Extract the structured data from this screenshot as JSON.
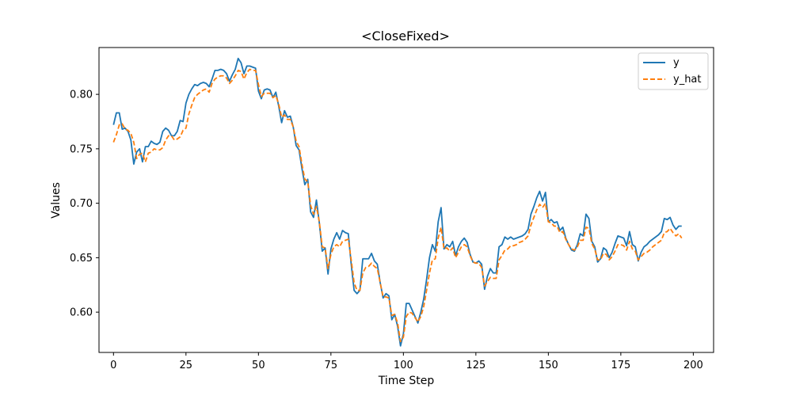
{
  "chart_data": {
    "type": "line",
    "title": "<CloseFixed>",
    "xlabel": "Time Step",
    "ylabel": "Values",
    "xlim": [
      -5,
      207
    ],
    "ylim": [
      0.563,
      0.843
    ],
    "xticks": [
      0,
      25,
      50,
      75,
      100,
      125,
      150,
      175,
      200
    ],
    "yticks": [
      0.6,
      0.65,
      0.7,
      0.75,
      0.8
    ],
    "ytick_labels": [
      "0.60",
      "0.65",
      "0.70",
      "0.75",
      "0.80"
    ],
    "grid": false,
    "legend_position": "top-right",
    "series": [
      {
        "name": "y",
        "color": "#1f77b4",
        "dash": "solid",
        "values": [
          0.772,
          0.783,
          0.783,
          0.768,
          0.769,
          0.766,
          0.758,
          0.736,
          0.747,
          0.75,
          0.738,
          0.752,
          0.752,
          0.757,
          0.755,
          0.754,
          0.756,
          0.766,
          0.769,
          0.767,
          0.762,
          0.762,
          0.766,
          0.776,
          0.775,
          0.792,
          0.8,
          0.805,
          0.809,
          0.808,
          0.81,
          0.811,
          0.81,
          0.807,
          0.814,
          0.822,
          0.822,
          0.823,
          0.822,
          0.819,
          0.812,
          0.818,
          0.823,
          0.833,
          0.829,
          0.819,
          0.826,
          0.826,
          0.825,
          0.824,
          0.803,
          0.796,
          0.804,
          0.805,
          0.804,
          0.797,
          0.802,
          0.789,
          0.774,
          0.785,
          0.779,
          0.78,
          0.77,
          0.753,
          0.749,
          0.732,
          0.717,
          0.722,
          0.692,
          0.687,
          0.703,
          0.682,
          0.656,
          0.659,
          0.635,
          0.658,
          0.667,
          0.673,
          0.667,
          0.675,
          0.673,
          0.672,
          0.644,
          0.62,
          0.617,
          0.62,
          0.649,
          0.649,
          0.649,
          0.654,
          0.647,
          0.644,
          0.627,
          0.613,
          0.617,
          0.615,
          0.593,
          0.598,
          0.587,
          0.569,
          0.58,
          0.608,
          0.608,
          0.602,
          0.596,
          0.59,
          0.6,
          0.612,
          0.63,
          0.65,
          0.662,
          0.656,
          0.683,
          0.696,
          0.658,
          0.662,
          0.66,
          0.665,
          0.652,
          0.66,
          0.665,
          0.668,
          0.664,
          0.653,
          0.646,
          0.645,
          0.647,
          0.644,
          0.621,
          0.633,
          0.64,
          0.636,
          0.636,
          0.66,
          0.662,
          0.669,
          0.667,
          0.669,
          0.667,
          0.668,
          0.669,
          0.67,
          0.672,
          0.676,
          0.69,
          0.697,
          0.705,
          0.711,
          0.702,
          0.71,
          0.683,
          0.685,
          0.682,
          0.683,
          0.675,
          0.678,
          0.668,
          0.662,
          0.657,
          0.656,
          0.662,
          0.672,
          0.67,
          0.69,
          0.686,
          0.665,
          0.66,
          0.646,
          0.649,
          0.659,
          0.657,
          0.65,
          0.655,
          0.663,
          0.67,
          0.669,
          0.668,
          0.661,
          0.674,
          0.662,
          0.66,
          0.647,
          0.655,
          0.66,
          0.662,
          0.665,
          0.667,
          0.669,
          0.671,
          0.674,
          0.686,
          0.685,
          0.687,
          0.68,
          0.676,
          0.679,
          0.679
        ]
      },
      {
        "name": "y_hat",
        "color": "#ff7f0e",
        "dash": "dashed",
        "values": [
          0.756,
          0.763,
          0.772,
          0.773,
          0.768,
          0.767,
          0.764,
          0.756,
          0.741,
          0.745,
          0.746,
          0.738,
          0.746,
          0.747,
          0.75,
          0.749,
          0.749,
          0.751,
          0.758,
          0.762,
          0.762,
          0.758,
          0.759,
          0.761,
          0.767,
          0.769,
          0.782,
          0.79,
          0.797,
          0.8,
          0.802,
          0.804,
          0.805,
          0.802,
          0.81,
          0.814,
          0.816,
          0.817,
          0.817,
          0.815,
          0.81,
          0.813,
          0.817,
          0.822,
          0.821,
          0.814,
          0.82,
          0.823,
          0.822,
          0.822,
          0.809,
          0.798,
          0.801,
          0.801,
          0.801,
          0.797,
          0.799,
          0.791,
          0.779,
          0.781,
          0.777,
          0.777,
          0.77,
          0.757,
          0.752,
          0.736,
          0.722,
          0.72,
          0.698,
          0.69,
          0.697,
          0.683,
          0.66,
          0.659,
          0.64,
          0.653,
          0.66,
          0.662,
          0.66,
          0.665,
          0.666,
          0.667,
          0.648,
          0.627,
          0.62,
          0.62,
          0.636,
          0.641,
          0.642,
          0.645,
          0.642,
          0.64,
          0.627,
          0.614,
          0.614,
          0.613,
          0.597,
          0.598,
          0.59,
          0.573,
          0.577,
          0.596,
          0.6,
          0.599,
          0.595,
          0.591,
          0.596,
          0.605,
          0.62,
          0.636,
          0.648,
          0.649,
          0.668,
          0.678,
          0.658,
          0.659,
          0.656,
          0.659,
          0.65,
          0.655,
          0.66,
          0.662,
          0.66,
          0.652,
          0.646,
          0.645,
          0.645,
          0.641,
          0.624,
          0.628,
          0.632,
          0.631,
          0.631,
          0.648,
          0.652,
          0.657,
          0.658,
          0.661,
          0.661,
          0.662,
          0.664,
          0.665,
          0.667,
          0.67,
          0.68,
          0.687,
          0.694,
          0.699,
          0.696,
          0.7,
          0.683,
          0.682,
          0.679,
          0.679,
          0.673,
          0.674,
          0.667,
          0.662,
          0.658,
          0.657,
          0.66,
          0.666,
          0.666,
          0.678,
          0.677,
          0.663,
          0.658,
          0.648,
          0.648,
          0.654,
          0.653,
          0.648,
          0.651,
          0.656,
          0.662,
          0.662,
          0.661,
          0.657,
          0.665,
          0.658,
          0.656,
          0.648,
          0.651,
          0.654,
          0.655,
          0.657,
          0.66,
          0.662,
          0.664,
          0.666,
          0.673,
          0.674,
          0.677,
          0.673,
          0.67,
          0.672,
          0.668
        ]
      }
    ]
  }
}
